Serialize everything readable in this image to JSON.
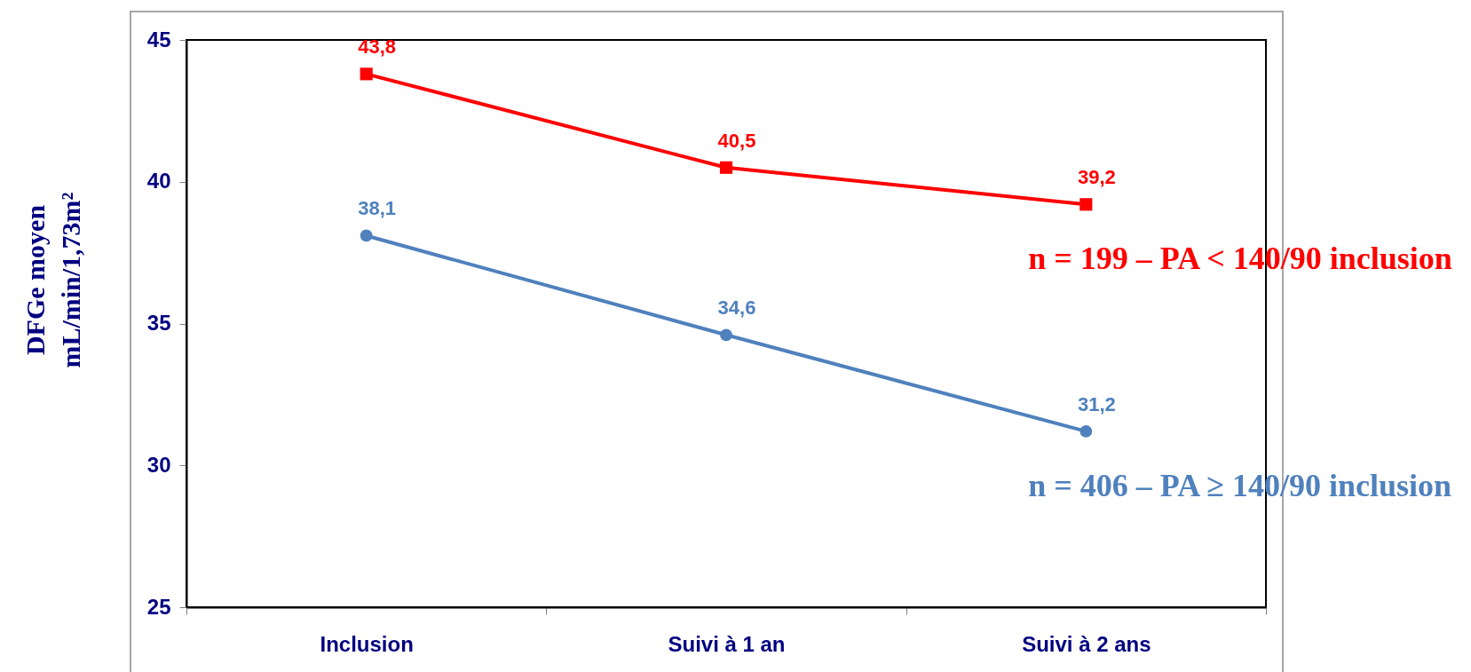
{
  "chart_data": {
    "type": "line",
    "ylabel": "DFGe moyen\nmL/min/1,73m²",
    "categories": [
      "Inclusion",
      "Suivi à 1 an",
      "Suivi à 2 ans"
    ],
    "series": [
      {
        "name": "n = 199 – PA < 140/90 inclusion",
        "color": "#ff0000",
        "marker": "square",
        "values": [
          43.8,
          40.5,
          39.2
        ],
        "value_labels": [
          "43,8",
          "40,5",
          "39,2"
        ]
      },
      {
        "name": "n = 406 – PA ≥ 140/90 inclusion",
        "color": "#4f81bd",
        "marker": "circle",
        "values": [
          38.1,
          34.6,
          31.2
        ],
        "value_labels": [
          "38,1",
          "34,6",
          "31,2"
        ]
      }
    ],
    "ylim": [
      25,
      45
    ],
    "yticks": [
      25,
      30,
      35,
      40,
      45
    ]
  }
}
